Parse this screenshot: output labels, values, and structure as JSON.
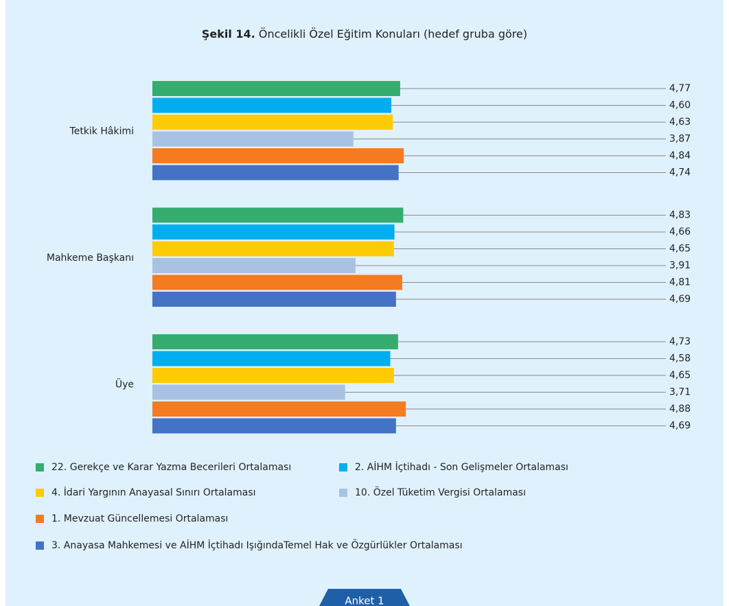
{
  "chart_data": {
    "type": "bar",
    "orientation": "horizontal",
    "title_label": "Şekil 14.",
    "title": "Öncelikli Özel Eğitim Konuları (hedef gruba göre)",
    "categories": [
      "Tetkik Hâkimi",
      "Mahkeme Başkanı",
      "Üye"
    ],
    "xlim": [
      0,
      6
    ],
    "series": [
      {
        "name": "22. Gerekçe ve Karar Yazma Becerileri Ortalaması",
        "color": "#35ad6f",
        "values": [
          4.77,
          4.83,
          4.73
        ],
        "value_labels": [
          "4,77",
          "4,83",
          "4,73"
        ]
      },
      {
        "name": "2. AİHM İçtihadı - Son Gelişmeler Ortalaması",
        "color": "#00aeef",
        "values": [
          4.6,
          4.66,
          4.58
        ],
        "value_labels": [
          "4,60",
          "4,66",
          "4,58"
        ]
      },
      {
        "name": "4. İdari Yargının Anayasal Sınırı Ortalaması",
        "color": "#ffcb05",
        "values": [
          4.63,
          4.65,
          4.65
        ],
        "value_labels": [
          "4,63",
          "4,65",
          "4,65"
        ]
      },
      {
        "name": "10. Özel Tüketim Vergisi Ortalaması",
        "color": "#a9c2e3",
        "values": [
          3.87,
          3.91,
          3.71
        ],
        "value_labels": [
          "3,87",
          "3,91",
          "3,71"
        ]
      },
      {
        "name": "1. Mevzuat Güncellemesi Ortalaması",
        "color": "#f47b20",
        "values": [
          4.84,
          4.81,
          4.88
        ],
        "value_labels": [
          "4,84",
          "4,81",
          "4,88"
        ]
      },
      {
        "name": "3. Anayasa Mahkemesi ve AİHM İçtihadı IşığındaTemel Hak ve Özgürlükler Ortalaması",
        "color": "#4472c4",
        "values": [
          4.74,
          4.69,
          4.69
        ],
        "value_labels": [
          "4,74",
          "4,69",
          "4,69"
        ]
      }
    ],
    "footer_tab": "Anket 1"
  }
}
